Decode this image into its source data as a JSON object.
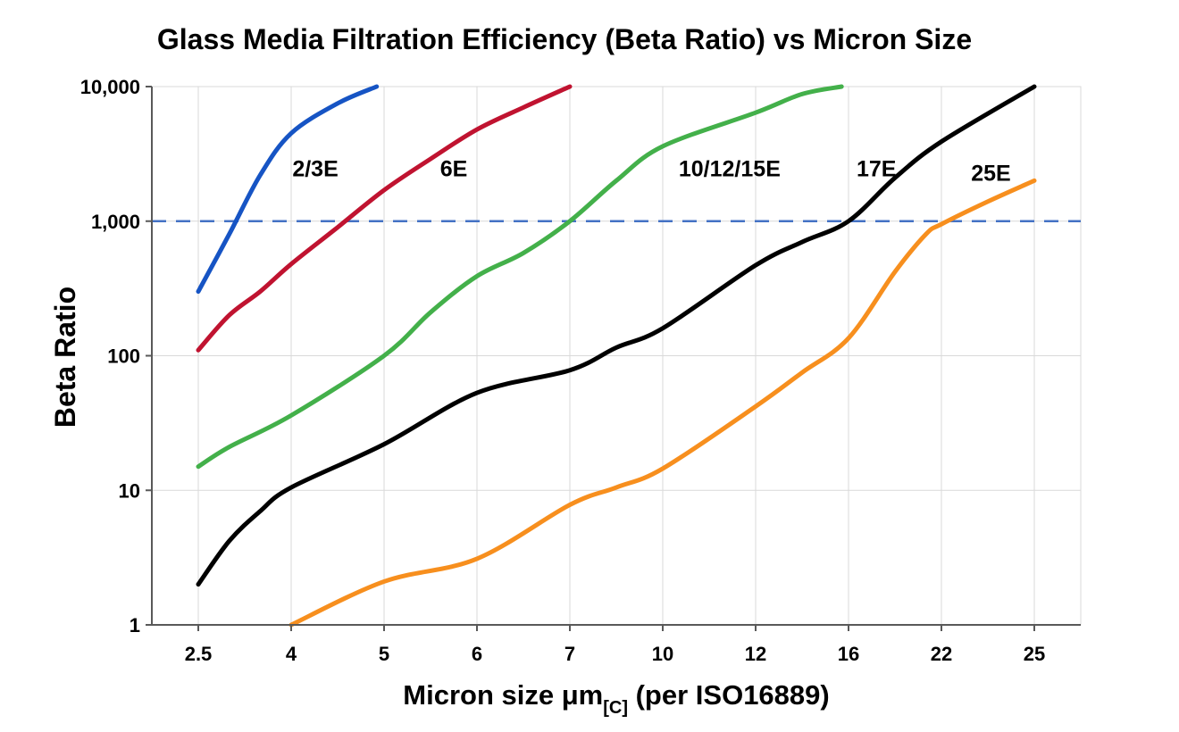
{
  "chart_data": {
    "type": "line",
    "title": "Glass Media Filtration Efficiency (Beta Ratio) vs Micron Size",
    "xlabel": "Micron size μm[C] (per ISO16889)",
    "xlabel_prefix": "Micron size μm",
    "xlabel_subscript": "[C]",
    "xlabel_suffix": " (per ISO16889)",
    "ylabel": "Beta Ratio",
    "x_scale": "categorical",
    "y_scale": "log",
    "grid": true,
    "x_ticks": [
      2.5,
      4,
      5,
      6,
      7,
      10,
      12,
      16,
      22,
      25
    ],
    "x_tick_labels": [
      "2.5",
      "4",
      "5",
      "6",
      "7",
      "10",
      "12",
      "16",
      "22",
      "25"
    ],
    "y_ticks": [
      1,
      10,
      100,
      1000,
      10000
    ],
    "y_tick_labels": [
      "1",
      "10",
      "100",
      "1,000",
      "10,000"
    ],
    "ylim": [
      1,
      10000
    ],
    "colors": {
      "grid": "#d9d9d9",
      "axis": "#595959",
      "reference": "#4472c4"
    },
    "reference_line": {
      "y": 1000,
      "style": "dashed",
      "color": "#4472c4"
    },
    "series": [
      {
        "name": "2/3E",
        "color": "#1654c4",
        "label": {
          "x": 4.26,
          "y": 2150
        },
        "points": [
          [
            2.5,
            300
          ],
          [
            3,
            800
          ],
          [
            3.5,
            2200
          ],
          [
            4,
            4500
          ],
          [
            4.5,
            7500
          ],
          [
            4.92,
            10000
          ]
        ]
      },
      {
        "name": "6E",
        "color": "#c01330",
        "label": {
          "x": 5.75,
          "y": 2150
        },
        "points": [
          [
            2.5,
            110
          ],
          [
            3,
            200
          ],
          [
            3.5,
            300
          ],
          [
            4,
            480
          ],
          [
            4.5,
            900
          ],
          [
            5,
            1700
          ],
          [
            5.5,
            2900
          ],
          [
            6,
            4800
          ],
          [
            6.5,
            7000
          ],
          [
            7,
            10000
          ]
        ]
      },
      {
        "name": "10/12/15E",
        "color": "#43b04a",
        "label": {
          "x": 11.44,
          "y": 2150
        },
        "points": [
          [
            2.5,
            15
          ],
          [
            3,
            21
          ],
          [
            4,
            36
          ],
          [
            5,
            100
          ],
          [
            5.5,
            210
          ],
          [
            6,
            390
          ],
          [
            6.5,
            580
          ],
          [
            7,
            1000
          ],
          [
            8.5,
            2000
          ],
          [
            10,
            3600
          ],
          [
            12,
            6400
          ],
          [
            14,
            8800
          ],
          [
            15.7,
            10000
          ]
        ]
      },
      {
        "name": "17E",
        "color": "#000000",
        "label": {
          "x": 17.8,
          "y": 2150
        },
        "points": [
          [
            2.5,
            2
          ],
          [
            3,
            4.2
          ],
          [
            3.5,
            7
          ],
          [
            4,
            10.5
          ],
          [
            5,
            22
          ],
          [
            6,
            53
          ],
          [
            7,
            78
          ],
          [
            8.5,
            115
          ],
          [
            10,
            160
          ],
          [
            12,
            470
          ],
          [
            14,
            700
          ],
          [
            16,
            1000
          ],
          [
            19,
            2100
          ],
          [
            22,
            3900
          ],
          [
            25,
            10000
          ]
        ]
      },
      {
        "name": "25E",
        "color": "#f78f1e",
        "label": {
          "x": 23.6,
          "y": 2000
        },
        "points": [
          [
            4,
            1
          ],
          [
            5,
            2.1
          ],
          [
            6,
            3.1
          ],
          [
            7,
            7.8
          ],
          [
            8.5,
            10.5
          ],
          [
            10,
            14.5
          ],
          [
            12,
            42
          ],
          [
            14,
            75
          ],
          [
            16,
            135
          ],
          [
            19,
            420
          ],
          [
            21,
            800
          ],
          [
            22,
            950
          ],
          [
            23.5,
            1400
          ],
          [
            25,
            2000
          ]
        ]
      }
    ]
  }
}
